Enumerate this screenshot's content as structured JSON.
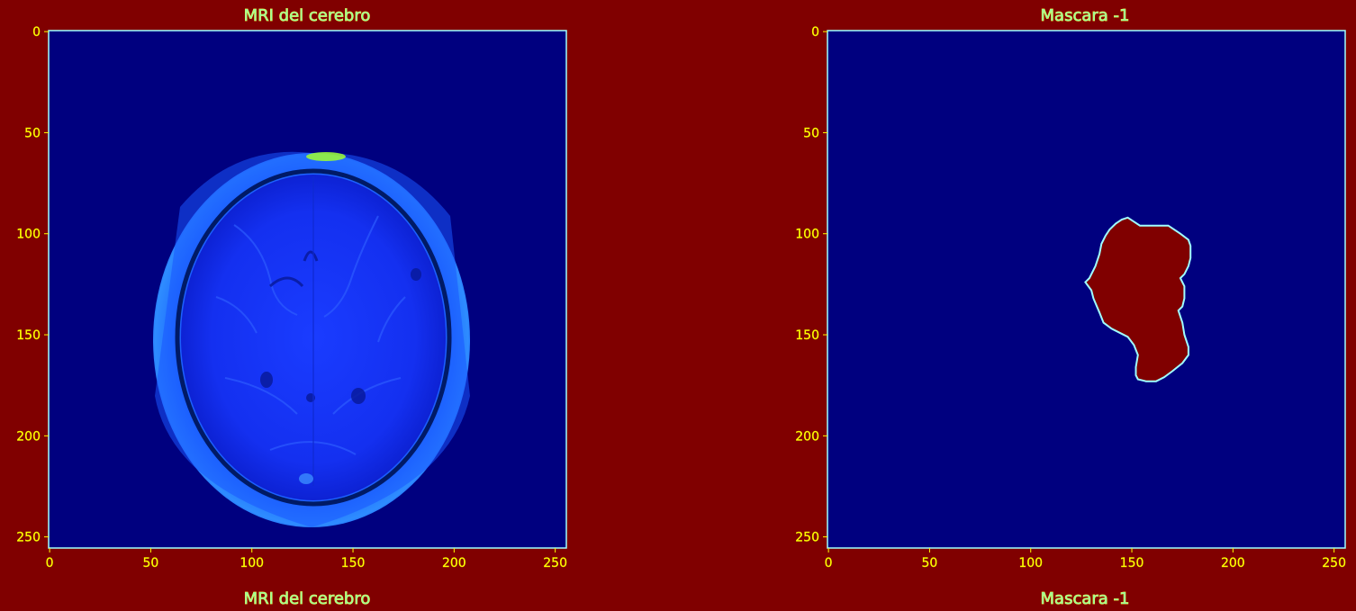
{
  "chart_data": [
    {
      "type": "image",
      "title": "MRI del cerebro",
      "xlabel": "MRI del cerebro",
      "ylabel": "",
      "xlim": [
        0,
        255
      ],
      "ylim": [
        255,
        0
      ],
      "x_ticks": [
        0,
        50,
        100,
        150,
        200,
        250
      ],
      "y_ticks": [
        0,
        50,
        100,
        150,
        200,
        250
      ],
      "colormap": "jet",
      "content": "axial brain MRI slice"
    },
    {
      "type": "image",
      "title": "Mascara -1",
      "xlabel": "Mascara -1",
      "ylabel": "",
      "xlim": [
        0,
        255
      ],
      "ylim": [
        255,
        0
      ],
      "x_ticks": [
        0,
        50,
        100,
        150,
        200,
        250
      ],
      "y_ticks": [
        0,
        50,
        100,
        150,
        200,
        250
      ],
      "colormap": "jet",
      "content": "binary tumor mask",
      "mask_outline": [
        [
          127,
          124
        ],
        [
          129,
          122
        ],
        [
          132,
          116
        ],
        [
          134,
          110
        ],
        [
          135,
          105
        ],
        [
          137,
          101
        ],
        [
          139,
          98
        ],
        [
          142,
          95
        ],
        [
          145,
          93
        ],
        [
          148,
          92
        ],
        [
          151,
          94
        ],
        [
          154,
          96
        ],
        [
          168,
          96
        ],
        [
          174,
          100
        ],
        [
          178,
          103
        ],
        [
          179,
          106
        ],
        [
          179,
          112
        ],
        [
          178,
          116
        ],
        [
          176,
          120
        ],
        [
          174,
          122
        ],
        [
          176,
          126
        ],
        [
          176,
          132
        ],
        [
          175,
          136
        ],
        [
          173,
          138
        ],
        [
          175,
          144
        ],
        [
          176,
          150
        ],
        [
          178,
          156
        ],
        [
          178,
          160
        ],
        [
          175,
          164
        ],
        [
          170,
          168
        ],
        [
          166,
          171
        ],
        [
          162,
          173
        ],
        [
          157,
          173
        ],
        [
          153,
          172
        ],
        [
          152,
          170
        ],
        [
          152,
          166
        ],
        [
          153,
          160
        ],
        [
          151,
          155
        ],
        [
          148,
          151
        ],
        [
          144,
          149
        ],
        [
          140,
          147
        ],
        [
          136,
          144
        ],
        [
          134,
          139
        ],
        [
          131,
          132
        ],
        [
          130,
          128
        ]
      ],
      "colors": {
        "background": "#00007f",
        "mask": "#800000",
        "edge": "#a0ffff"
      }
    }
  ],
  "colors": {
    "figure_bg": "#800000",
    "plot_bg": "#00007f",
    "frame": "#9fffff",
    "tick_text": "#ffff00",
    "title_text": "#9bff9b"
  }
}
